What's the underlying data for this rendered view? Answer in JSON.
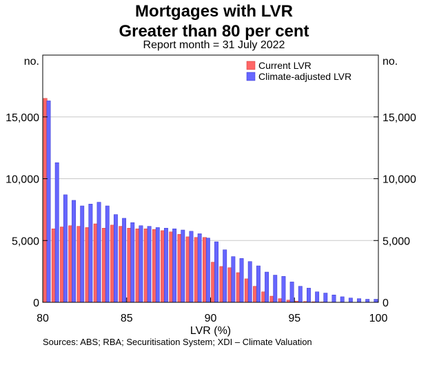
{
  "chart_data": {
    "type": "bar",
    "title": "Mortgages with LVR",
    "title_line2": "Greater than 80 per cent",
    "subtitle": "Report month = 31 July 2022",
    "xlabel": "LVR (%)",
    "ylabel_left": "no.",
    "ylabel_right": "no.",
    "xlim": [
      80,
      100
    ],
    "ylim": [
      0,
      20000
    ],
    "x_ticks": [
      80,
      85,
      90,
      95,
      100
    ],
    "x_tick_labels": [
      "80",
      "85",
      "90",
      "95",
      "100"
    ],
    "y_ticks": [
      0,
      5000,
      10000,
      15000
    ],
    "y_tick_labels": [
      "0",
      "5,000",
      "10,000",
      "15,000"
    ],
    "bin_width": 0.5,
    "bin_starts": [
      80.0,
      80.5,
      81.0,
      81.5,
      82.0,
      82.5,
      83.0,
      83.5,
      84.0,
      84.5,
      85.0,
      85.5,
      86.0,
      86.5,
      87.0,
      87.5,
      88.0,
      88.5,
      89.0,
      89.5,
      90.0,
      90.5,
      91.0,
      91.5,
      92.0,
      92.5,
      93.0,
      93.5,
      94.0,
      94.5,
      95.0,
      95.5,
      96.0,
      96.5,
      97.0,
      97.5,
      98.0,
      98.5,
      99.0,
      99.5
    ],
    "series": [
      {
        "name": "Current LVR",
        "color": "#ff6666",
        "values": [
          16500,
          5950,
          6100,
          6200,
          6150,
          6050,
          6350,
          6000,
          6250,
          6150,
          6000,
          5950,
          5950,
          5900,
          5800,
          5700,
          5500,
          5300,
          5250,
          5250,
          3250,
          2900,
          2800,
          2400,
          1900,
          1300,
          850,
          500,
          300,
          180,
          100,
          70,
          50,
          30,
          20,
          15,
          10,
          5,
          5,
          5
        ]
      },
      {
        "name": "Climate-adjusted LVR",
        "color": "#6666ff",
        "values": [
          16300,
          11300,
          8700,
          8250,
          7800,
          7950,
          8100,
          7800,
          7100,
          6800,
          6450,
          6200,
          6150,
          6050,
          6000,
          5950,
          5850,
          5750,
          5550,
          5200,
          4900,
          4250,
          3700,
          3550,
          3300,
          2950,
          2450,
          2200,
          2100,
          1650,
          1300,
          1150,
          850,
          750,
          600,
          450,
          350,
          300,
          250,
          250
        ]
      }
    ],
    "legend": [
      "Current LVR",
      "Climate-adjusted LVR"
    ],
    "legend_position": "top-right",
    "grid": true
  },
  "footer": {
    "sources": "Sources:  ABS; RBA; Securitisation System; XDI – Climate Valuation"
  }
}
